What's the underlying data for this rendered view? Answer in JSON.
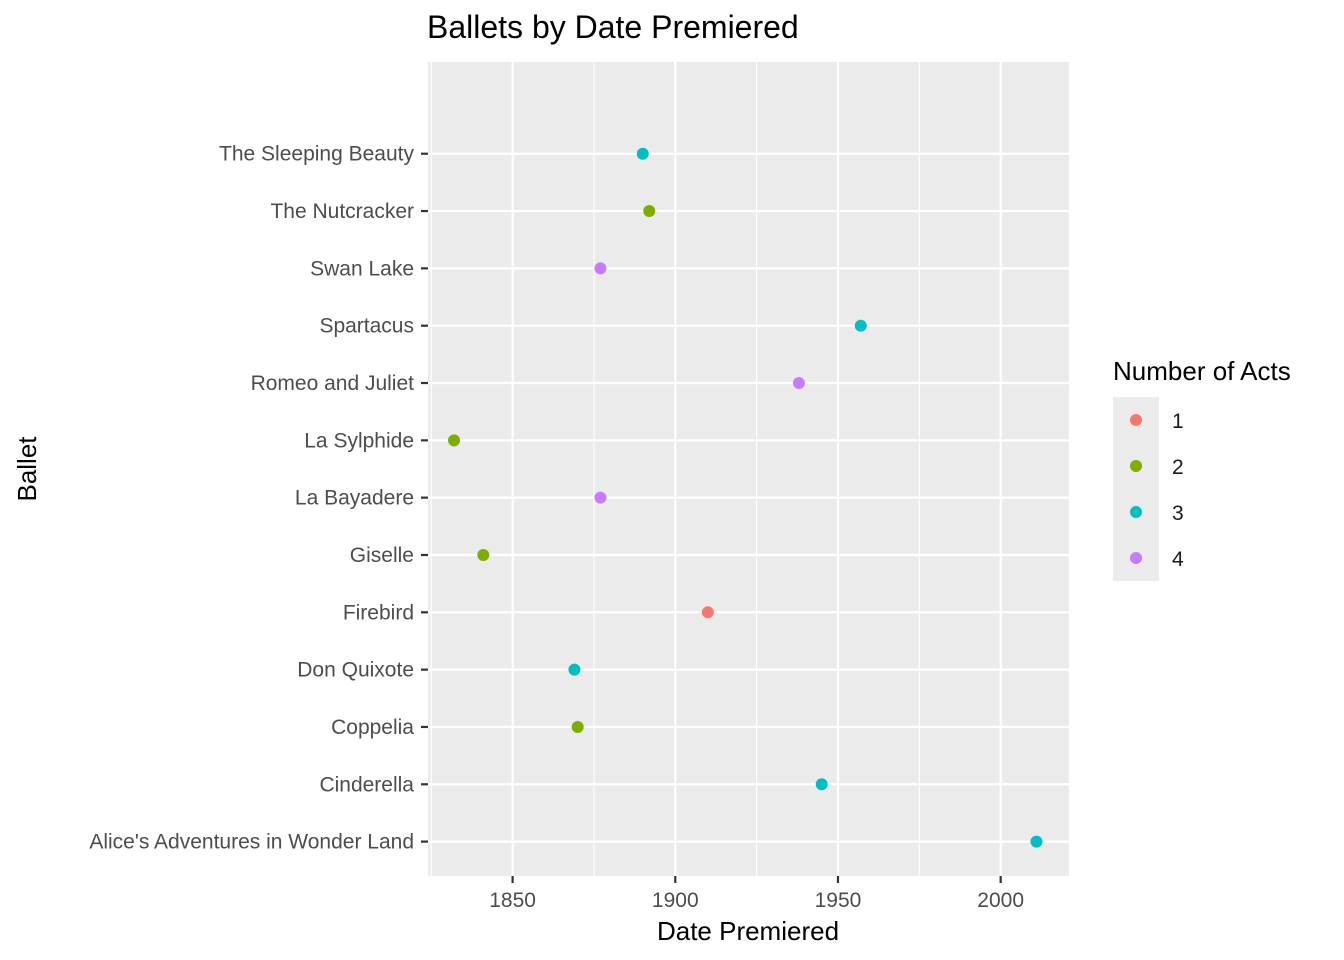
{
  "chart_data": {
    "type": "scatter",
    "title": "Ballets by Date Premiered",
    "xlabel": "Date Premiered",
    "ylabel": "Ballet",
    "xlim": [
      1824,
      2021
    ],
    "x_ticks": [
      1850,
      1900,
      1950,
      2000
    ],
    "grid": true,
    "legend_position": "right",
    "legend_title": "Number of Acts",
    "categories": [
      "Alice's Adventures in Wonder Land",
      "Cinderella",
      "Coppelia",
      "Don Quixote",
      "Firebird",
      "Giselle",
      "La Bayadere",
      "La Sylphide",
      "Romeo and Juliet",
      "Spartacus",
      "Swan Lake",
      "The Nutcracker",
      "The Sleeping Beauty"
    ],
    "groups": [
      {
        "name": "1",
        "color": "#F8766D"
      },
      {
        "name": "2",
        "color": "#7CAE00"
      },
      {
        "name": "3",
        "color": "#00BFC4"
      },
      {
        "name": "4",
        "color": "#C77CFF"
      }
    ],
    "points": [
      {
        "ballet": "The Sleeping Beauty",
        "year": 1890,
        "acts": "3"
      },
      {
        "ballet": "The Nutcracker",
        "year": 1892,
        "acts": "2"
      },
      {
        "ballet": "Swan Lake",
        "year": 1877,
        "acts": "4"
      },
      {
        "ballet": "Spartacus",
        "year": 1957,
        "acts": "3"
      },
      {
        "ballet": "Romeo and Juliet",
        "year": 1938,
        "acts": "4"
      },
      {
        "ballet": "La Sylphide",
        "year": 1832,
        "acts": "2"
      },
      {
        "ballet": "La Bayadere",
        "year": 1877,
        "acts": "4"
      },
      {
        "ballet": "Giselle",
        "year": 1841,
        "acts": "2"
      },
      {
        "ballet": "Firebird",
        "year": 1910,
        "acts": "1"
      },
      {
        "ballet": "Don Quixote",
        "year": 1869,
        "acts": "3"
      },
      {
        "ballet": "Coppelia",
        "year": 1870,
        "acts": "2"
      },
      {
        "ballet": "Cinderella",
        "year": 1945,
        "acts": "3"
      },
      {
        "ballet": "Alice's Adventures in Wonder Land",
        "year": 2011,
        "acts": "3"
      }
    ]
  }
}
